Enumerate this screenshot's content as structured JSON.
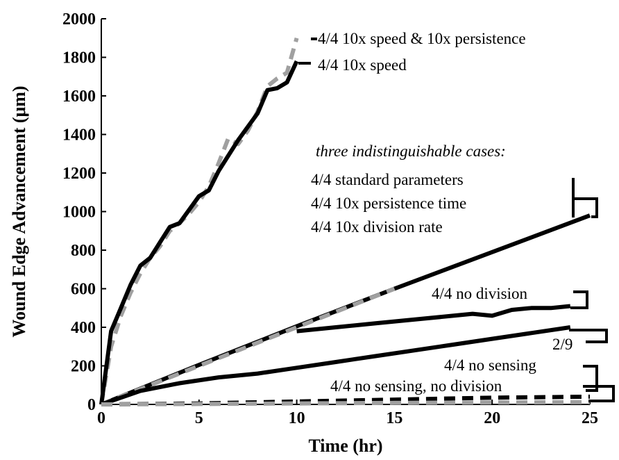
{
  "chart_data": {
    "type": "line",
    "xlabel": "Time (hr)",
    "ylabel": "Wound Edge Advancement (μm)",
    "xlim": [
      0,
      25
    ],
    "ylim": [
      0,
      2000
    ],
    "xticks": [
      "0",
      "5",
      "10",
      "15",
      "20",
      "25"
    ],
    "yticks": [
      "0",
      "200",
      "400",
      "600",
      "800",
      "1000",
      "1200",
      "1400",
      "1600",
      "1800",
      "2000"
    ],
    "series": [
      {
        "name": "4/4 10x speed & 10x persistence",
        "color": "#a0a0a0",
        "style": "dashed",
        "x": [
          0,
          0.5,
          1,
          1.5,
          2,
          2.5,
          3,
          3.5,
          4,
          4.5,
          5,
          5.5,
          6,
          6.5,
          7,
          7.5,
          8,
          8.5,
          9,
          9.5,
          10
        ],
        "y": [
          0,
          300,
          460,
          580,
          680,
          760,
          820,
          900,
          940,
          990,
          1050,
          1130,
          1250,
          1380,
          1350,
          1420,
          1520,
          1650,
          1690,
          1720,
          1900
        ]
      },
      {
        "name": "4/4 10x speed",
        "color": "#000000",
        "style": "solid",
        "x": [
          0,
          0.5,
          1,
          1.5,
          2,
          2.5,
          3,
          3.5,
          4,
          4.5,
          5,
          5.5,
          6,
          6.5,
          7,
          7.5,
          8,
          8.5,
          9,
          9.5,
          10
        ],
        "y": [
          0,
          380,
          500,
          620,
          720,
          760,
          840,
          920,
          940,
          1010,
          1080,
          1110,
          1210,
          1290,
          1370,
          1440,
          1510,
          1630,
          1640,
          1670,
          1780
        ]
      },
      {
        "name": "4/4 standard parameters",
        "color": "#000000",
        "style": "solid",
        "x": [
          0,
          5,
          10,
          15,
          20,
          25
        ],
        "y": [
          0,
          205,
          405,
          600,
          790,
          980
        ]
      },
      {
        "name": "4/4 10x persistence time",
        "color": "#a0a0a0",
        "style": "dashed",
        "x": [
          0,
          3,
          6,
          9,
          12,
          15
        ],
        "y": [
          0,
          120,
          240,
          360,
          480,
          600
        ]
      },
      {
        "name": "4/4 no division",
        "color": "#000000",
        "style": "solid",
        "x": [
          10,
          12,
          14,
          16,
          18,
          19,
          20,
          21,
          22,
          23,
          24
        ],
        "y": [
          380,
          400,
          420,
          440,
          460,
          470,
          460,
          490,
          500,
          500,
          510
        ]
      },
      {
        "name": "2/9",
        "color": "#000000",
        "style": "solid",
        "x": [
          0,
          2,
          4,
          6,
          8,
          10,
          12,
          14,
          16,
          18,
          20,
          22,
          24
        ],
        "y": [
          0,
          70,
          110,
          140,
          160,
          190,
          220,
          250,
          280,
          310,
          340,
          370,
          400
        ]
      },
      {
        "name": "4/4 no sensing",
        "color": "#000000",
        "style": "dashed",
        "x": [
          0,
          5,
          10,
          15,
          20,
          25
        ],
        "y": [
          0,
          5,
          15,
          25,
          35,
          40
        ]
      },
      {
        "name": "4/4 no sensing, no division",
        "color": "#a0a0a0",
        "style": "dashed",
        "x": [
          0,
          5,
          10,
          15,
          20,
          25
        ],
        "y": [
          0,
          2,
          5,
          8,
          10,
          12
        ]
      }
    ],
    "annotations": {
      "a1": "4/4 10x speed & 10x persistence",
      "a2": "4/4 10x speed",
      "a3": "three indistinguishable cases:",
      "a4": "4/4 standard parameters",
      "a5": "4/4 10x persistence time",
      "a6": "4/4 10x division rate",
      "a7": "4/4 no division",
      "a8": "2/9",
      "a9": "4/4 no sensing",
      "a10": "4/4 no sensing, no division"
    }
  }
}
